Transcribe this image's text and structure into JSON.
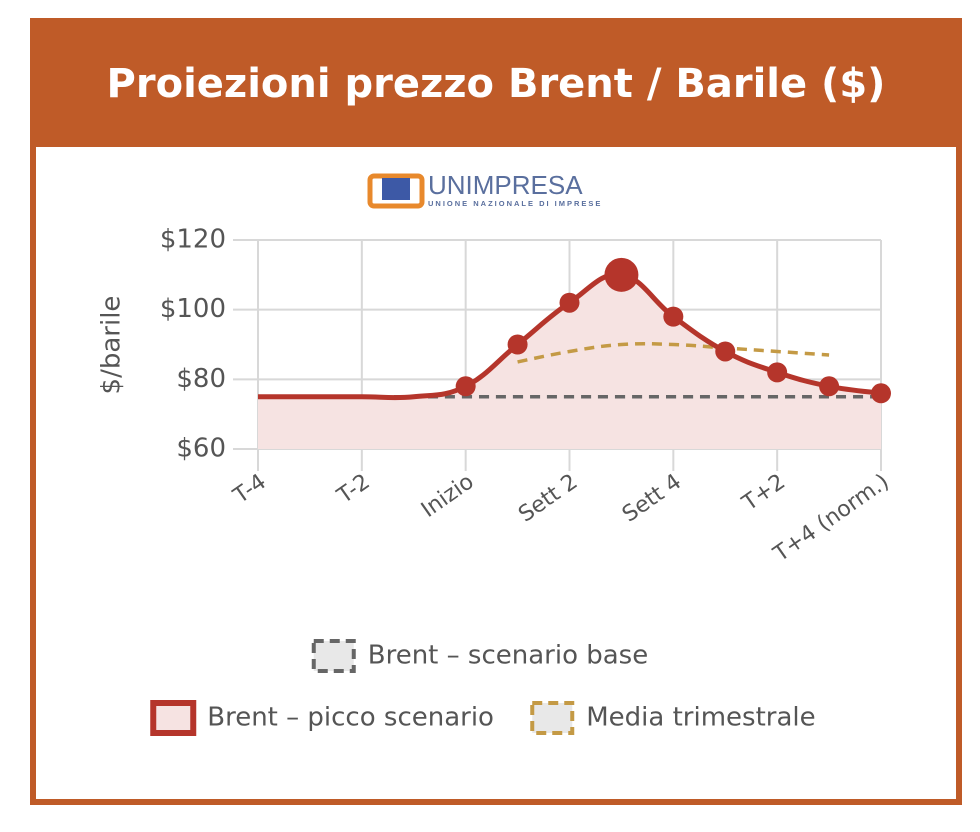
{
  "logo": {
    "name": "UNIMPRESA",
    "tagline": "UNIONE NAZIONALE DI IMPRESE"
  },
  "chart_data": {
    "type": "line",
    "title": "Proiezioni prezzo Brent / Barile ($)",
    "y_label": "$/barile",
    "categories": [
      "T-4",
      null,
      "T-2",
      null,
      "Inizio",
      null,
      "Sett 2",
      null,
      "Sett 4",
      null,
      "T+2",
      null,
      "T+4 (norm.)"
    ],
    "series": [
      {
        "name": "Brent – scenario base",
        "color": "#666666",
        "dashed": true,
        "values": [
          75,
          75,
          75,
          75,
          75,
          75,
          75,
          75,
          75,
          75,
          75,
          75,
          75
        ]
      },
      {
        "name": "Brent – picco scenario",
        "color": "#b5352b",
        "fill": "#f6e3e2",
        "point_radius": [
          0,
          0,
          0,
          0,
          10,
          10,
          10,
          17,
          10,
          10,
          10,
          10,
          10
        ],
        "values": [
          75,
          75,
          75,
          75,
          78,
          90,
          102,
          110,
          98,
          88,
          82,
          78,
          76
        ]
      },
      {
        "name": "Media trimestrale",
        "color": "#c49a45",
        "dashed": true,
        "values": [
          null,
          null,
          null,
          null,
          null,
          85,
          88,
          90,
          90,
          89,
          88,
          87,
          null
        ]
      }
    ],
    "ylim": [
      60,
      120
    ],
    "yticks": [
      {
        "value": 60,
        "label": "$60"
      },
      {
        "value": 80,
        "label": "$80"
      },
      {
        "value": 100,
        "label": "$100"
      },
      {
        "value": 120,
        "label": "$120"
      }
    ],
    "grid": true
  }
}
